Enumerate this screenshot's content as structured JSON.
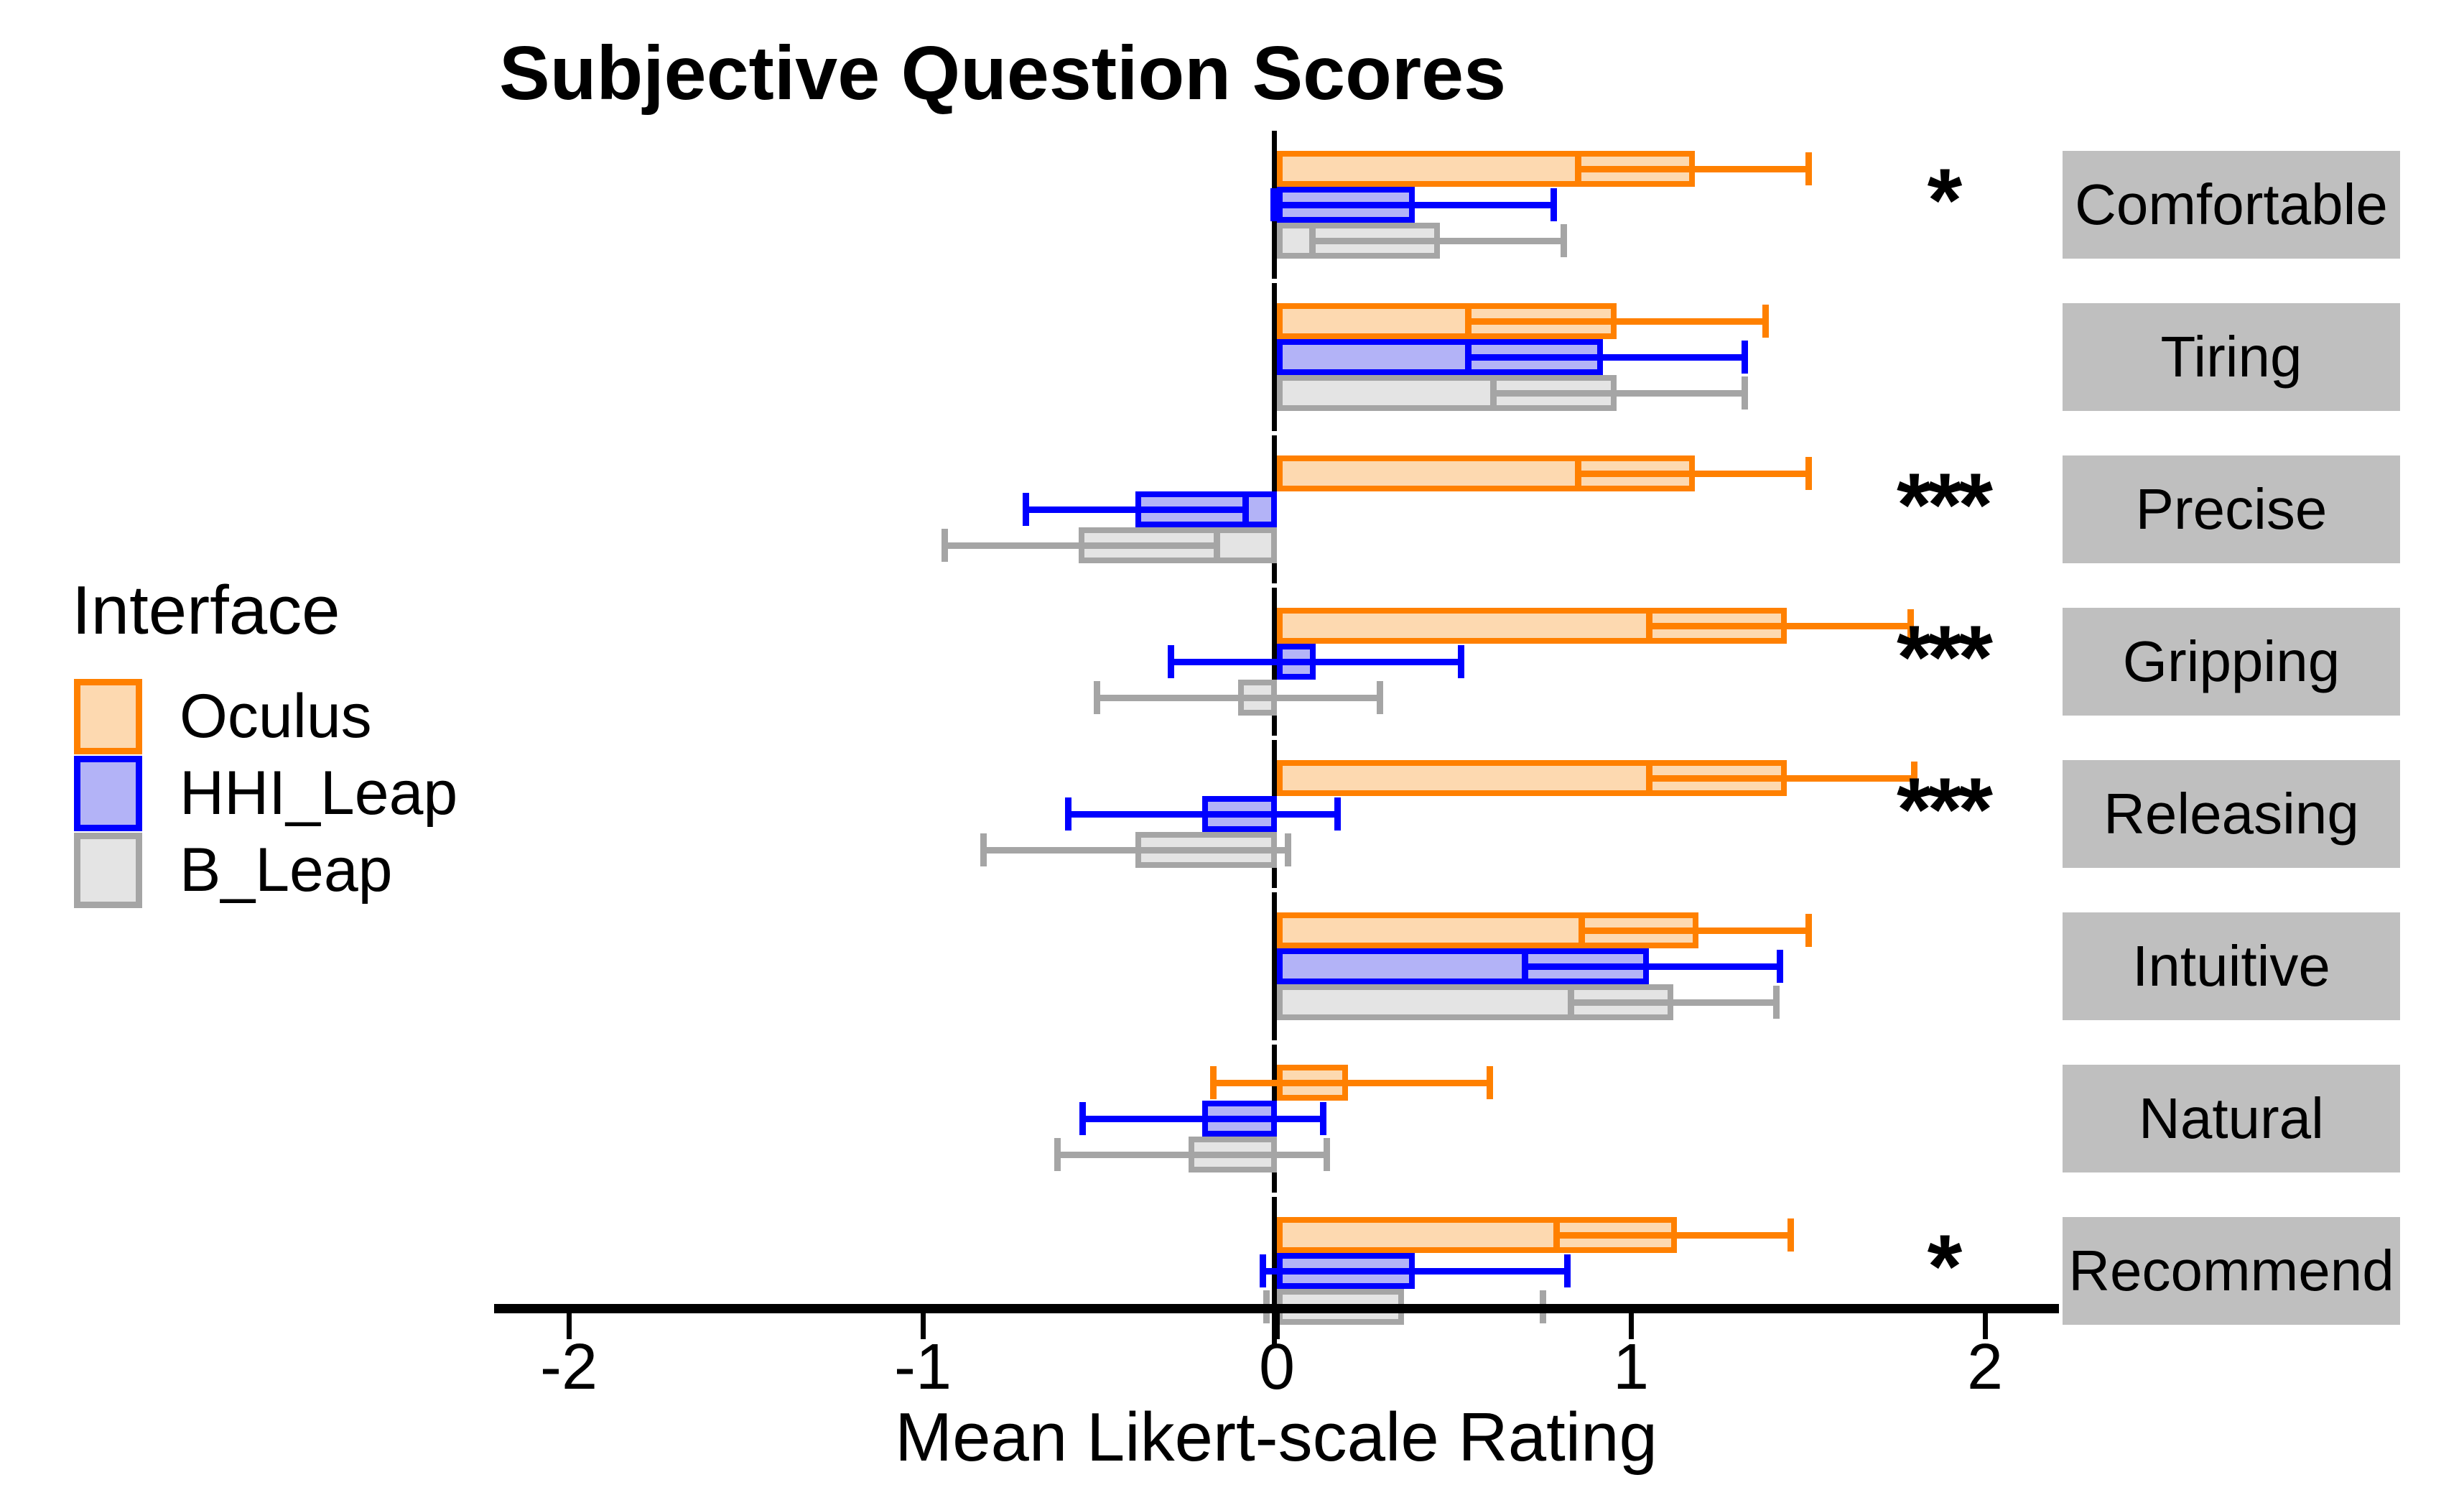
{
  "title": "Subjective Question Scores",
  "legend": {
    "title": "Interface",
    "items": [
      {
        "label": "Oculus"
      },
      {
        "label": "HHI_Leap"
      },
      {
        "label": "B_Leap"
      }
    ]
  },
  "chart_data": {
    "type": "bar",
    "orientation": "horizontal",
    "title": "Subjective Question Scores",
    "xlabel": "Mean Likert-scale Rating",
    "xlim": [
      -2.25,
      2.2
    ],
    "xticks": [
      -2,
      -1,
      0,
      1,
      2
    ],
    "grid": false,
    "legend_position": "left",
    "error_bars": "95% CI",
    "series": [
      {
        "name": "Oculus",
        "border": "#FF8000",
        "fill": "#FDD9B0"
      },
      {
        "name": "HHI_Leap",
        "border": "#0000FF",
        "fill": "#B3B3F7"
      },
      {
        "name": "B_Leap",
        "border": "#A5A5A5",
        "fill": "#E4E4E4"
      }
    ],
    "strip_bg": "#BFBFBF",
    "facets": [
      {
        "label": "Comfortable",
        "significance": "*",
        "bars": [
          {
            "series": "Oculus",
            "mean": 1.18,
            "ci": [
              0.85,
              1.5
            ]
          },
          {
            "series": "HHI_Leap",
            "mean": 0.39,
            "ci": [
              -0.01,
              0.78
            ]
          },
          {
            "series": "B_Leap",
            "mean": 0.46,
            "ci": [
              0.1,
              0.81
            ]
          }
        ]
      },
      {
        "label": "Tiring",
        "significance": "",
        "bars": [
          {
            "series": "Oculus",
            "mean": 0.96,
            "ci": [
              0.54,
              1.38
            ]
          },
          {
            "series": "HHI_Leap",
            "mean": 0.92,
            "ci": [
              0.54,
              1.32
            ]
          },
          {
            "series": "B_Leap",
            "mean": 0.96,
            "ci": [
              0.61,
              1.32
            ]
          }
        ]
      },
      {
        "label": "Precise",
        "significance": "***",
        "bars": [
          {
            "series": "Oculus",
            "mean": 1.18,
            "ci": [
              0.85,
              1.5
            ]
          },
          {
            "series": "HHI_Leap",
            "mean": -0.4,
            "ci": [
              -0.71,
              -0.09
            ]
          },
          {
            "series": "B_Leap",
            "mean": -0.56,
            "ci": [
              -0.94,
              -0.17
            ]
          }
        ]
      },
      {
        "label": "Gripping",
        "significance": "***",
        "bars": [
          {
            "series": "Oculus",
            "mean": 1.44,
            "ci": [
              1.05,
              1.79
            ]
          },
          {
            "series": "HHI_Leap",
            "mean": 0.11,
            "ci": [
              -0.3,
              0.52
            ]
          },
          {
            "series": "B_Leap",
            "mean": -0.11,
            "ci": [
              -0.51,
              0.29
            ]
          }
        ]
      },
      {
        "label": "Releasing",
        "significance": "***",
        "bars": [
          {
            "series": "Oculus",
            "mean": 1.44,
            "ci": [
              1.05,
              1.8
            ]
          },
          {
            "series": "HHI_Leap",
            "mean": -0.21,
            "ci": [
              -0.59,
              0.17
            ]
          },
          {
            "series": "B_Leap",
            "mean": -0.4,
            "ci": [
              -0.83,
              0.03
            ]
          }
        ]
      },
      {
        "label": "Intuitive",
        "significance": "",
        "bars": [
          {
            "series": "Oculus",
            "mean": 1.19,
            "ci": [
              0.86,
              1.5
            ]
          },
          {
            "series": "HHI_Leap",
            "mean": 1.05,
            "ci": [
              0.7,
              1.42
            ]
          },
          {
            "series": "B_Leap",
            "mean": 1.12,
            "ci": [
              0.83,
              1.41
            ]
          }
        ]
      },
      {
        "label": "Natural",
        "significance": "",
        "bars": [
          {
            "series": "Oculus",
            "mean": 0.2,
            "ci": [
              -0.18,
              0.6
            ]
          },
          {
            "series": "HHI_Leap",
            "mean": -0.21,
            "ci": [
              -0.55,
              0.13
            ]
          },
          {
            "series": "B_Leap",
            "mean": -0.25,
            "ci": [
              -0.62,
              0.14
            ]
          }
        ]
      },
      {
        "label": "Recommend",
        "significance": "*",
        "bars": [
          {
            "series": "Oculus",
            "mean": 1.13,
            "ci": [
              0.79,
              1.45
            ]
          },
          {
            "series": "HHI_Leap",
            "mean": 0.39,
            "ci": [
              -0.04,
              0.82
            ]
          },
          {
            "series": "B_Leap",
            "mean": 0.36,
            "ci": [
              -0.03,
              0.75
            ]
          }
        ]
      }
    ]
  }
}
